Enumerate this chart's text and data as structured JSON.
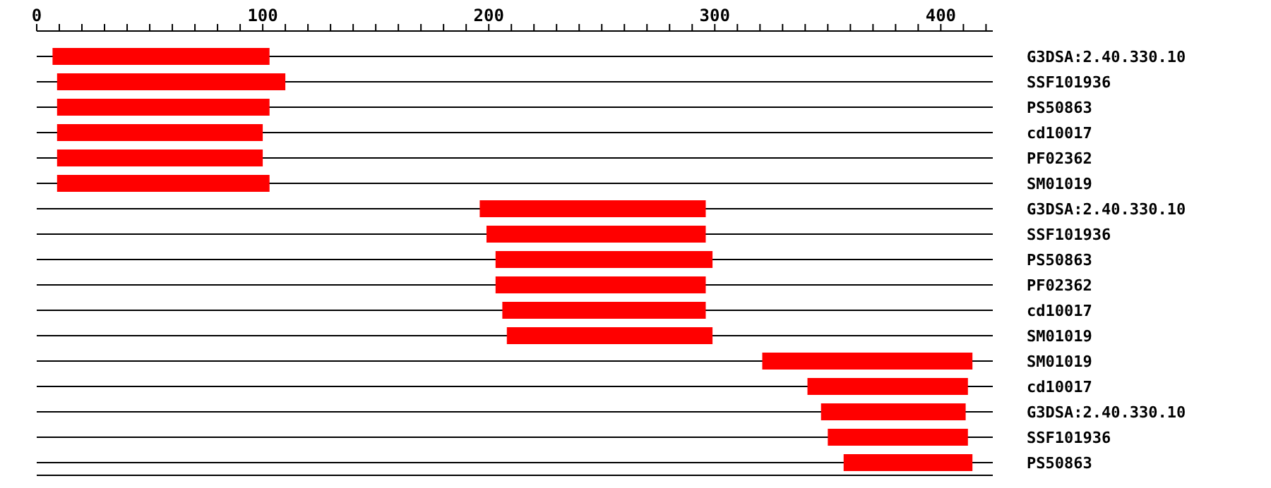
{
  "chart_data": {
    "type": "bar",
    "orientation": "horizontal",
    "categories": [
      "G3DSA:2.40.330.10",
      "SSF101936",
      "PS50863",
      "cd10017",
      "PF02362",
      "SM01019",
      "G3DSA:2.40.330.10",
      "SSF101936",
      "PS50863",
      "PF02362",
      "cd10017",
      "SM01019",
      "SM01019",
      "cd10017",
      "G3DSA:2.40.330.10",
      "SSF101936",
      "PS50863"
    ],
    "base": [
      7,
      9,
      9,
      9,
      9,
      9,
      196,
      199,
      203,
      203,
      206,
      208,
      321,
      341,
      347,
      350,
      357
    ],
    "values": [
      96,
      101,
      94,
      91,
      91,
      94,
      100,
      97,
      96,
      93,
      90,
      91,
      93,
      71,
      64,
      62,
      57
    ],
    "color": "#ff0000",
    "xlim": [
      0,
      423
    ],
    "xticks": [
      0,
      {
        "value": 10,
        "label": null
      },
      {
        "value": 20,
        "label": null
      },
      {
        "value": 30,
        "label": null
      },
      {
        "value": 40,
        "label": null
      },
      {
        "value": 50,
        "label": null
      },
      {
        "value": 60,
        "label": null
      },
      {
        "value": 70,
        "label": null
      },
      {
        "value": 80,
        "label": null
      },
      {
        "value": 90,
        "label": null
      },
      100,
      {
        "value": 110,
        "label": null
      },
      {
        "value": 120,
        "label": null
      },
      {
        "value": 130,
        "label": null
      },
      {
        "value": 140,
        "label": null
      },
      {
        "value": 150,
        "label": null
      },
      {
        "value": 160,
        "label": null
      },
      {
        "value": 170,
        "label": null
      },
      {
        "value": 180,
        "label": null
      },
      {
        "value": 190,
        "label": null
      },
      200,
      {
        "value": 210,
        "label": null
      },
      {
        "value": 220,
        "label": null
      },
      {
        "value": 230,
        "label": null
      },
      {
        "value": 240,
        "label": null
      },
      {
        "value": 250,
        "label": null
      },
      {
        "value": 260,
        "label": null
      },
      {
        "value": 270,
        "label": null
      },
      {
        "value": 280,
        "label": null
      },
      {
        "value": 290,
        "label": null
      },
      300,
      {
        "value": 310,
        "label": null
      },
      {
        "value": 320,
        "label": null
      },
      {
        "value": 330,
        "label": null
      },
      {
        "value": 340,
        "label": null
      },
      {
        "value": 350,
        "label": null
      },
      {
        "value": 360,
        "label": null
      },
      {
        "value": 370,
        "label": null
      },
      {
        "value": 380,
        "label": null
      },
      {
        "value": 390,
        "label": null
      },
      400,
      {
        "value": 410,
        "label": null
      },
      {
        "value": 420,
        "label": null
      }
    ],
    "grid": "y",
    "legend": false
  }
}
